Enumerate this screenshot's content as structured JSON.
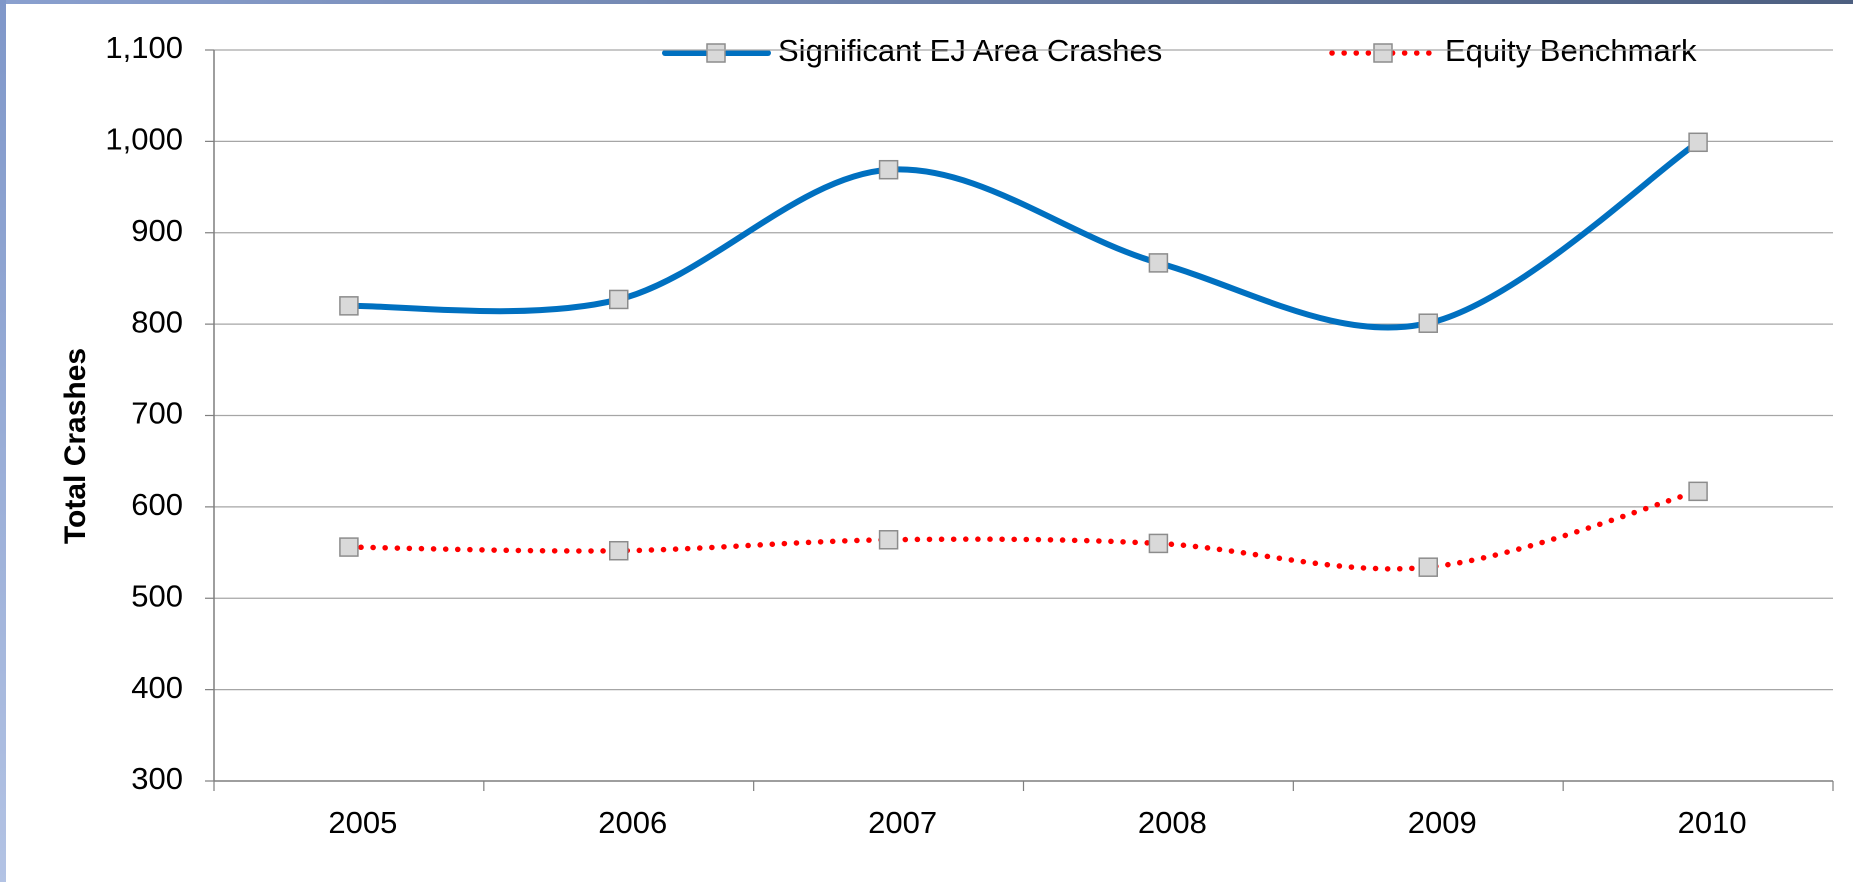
{
  "chart_data": {
    "type": "line",
    "y_label": "Total Crashes",
    "categories": [
      "2005",
      "2006",
      "2007",
      "2008",
      "2009",
      "2010"
    ],
    "series": [
      {
        "name": "Significant EJ Area Crashes",
        "color": "#0070c0",
        "values": [
          820,
          827,
          969,
          867,
          801,
          999
        ]
      },
      {
        "name": "Equity Benchmark",
        "color": "#ff0000",
        "values": [
          556,
          552,
          564,
          560,
          534,
          617
        ]
      }
    ],
    "ylim": [
      300,
      1100
    ],
    "yticks": [
      300,
      400,
      500,
      600,
      700,
      800,
      900,
      {
        "value": 1000,
        "label": "1,000"
      },
      {
        "value": 1100,
        "label": "1,100"
      }
    ],
    "grid": true,
    "smooth": true
  }
}
